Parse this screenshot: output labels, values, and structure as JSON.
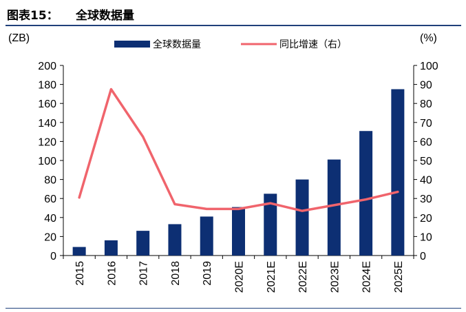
{
  "header": {
    "figure_label": "图表15：",
    "title": "全球数据量"
  },
  "chart_data": {
    "type": "bar",
    "categories": [
      "2015",
      "2016",
      "2017",
      "2018",
      "2019",
      "2020E",
      "2021E",
      "2022E",
      "2023E",
      "2024E",
      "2025E"
    ],
    "series": [
      {
        "name": "全球数据量",
        "type": "bar",
        "axis": "left",
        "color": "#0d2f73",
        "values": [
          9,
          16,
          26,
          33,
          41,
          51,
          65,
          80,
          101,
          131,
          175
        ]
      },
      {
        "name": "同比增速（右）",
        "type": "line",
        "axis": "right",
        "color": "#f0646c",
        "values": [
          30.5,
          87.5,
          62.5,
          27,
          24.5,
          24.5,
          27.5,
          23.5,
          26.5,
          29.5,
          33.5
        ]
      }
    ],
    "ylabel": "(ZB)",
    "y2label": "(%)",
    "ylim": [
      0,
      200
    ],
    "y2lim": [
      0,
      100
    ],
    "yticks": [
      "0",
      "20",
      "40",
      "60",
      "80",
      "100",
      "120",
      "140",
      "160",
      "180",
      "200"
    ],
    "y2ticks": [
      "0",
      "10",
      "20",
      "30",
      "40",
      "50",
      "60",
      "70",
      "80",
      "90",
      "100"
    ],
    "legend": "top-center",
    "grid": false
  }
}
